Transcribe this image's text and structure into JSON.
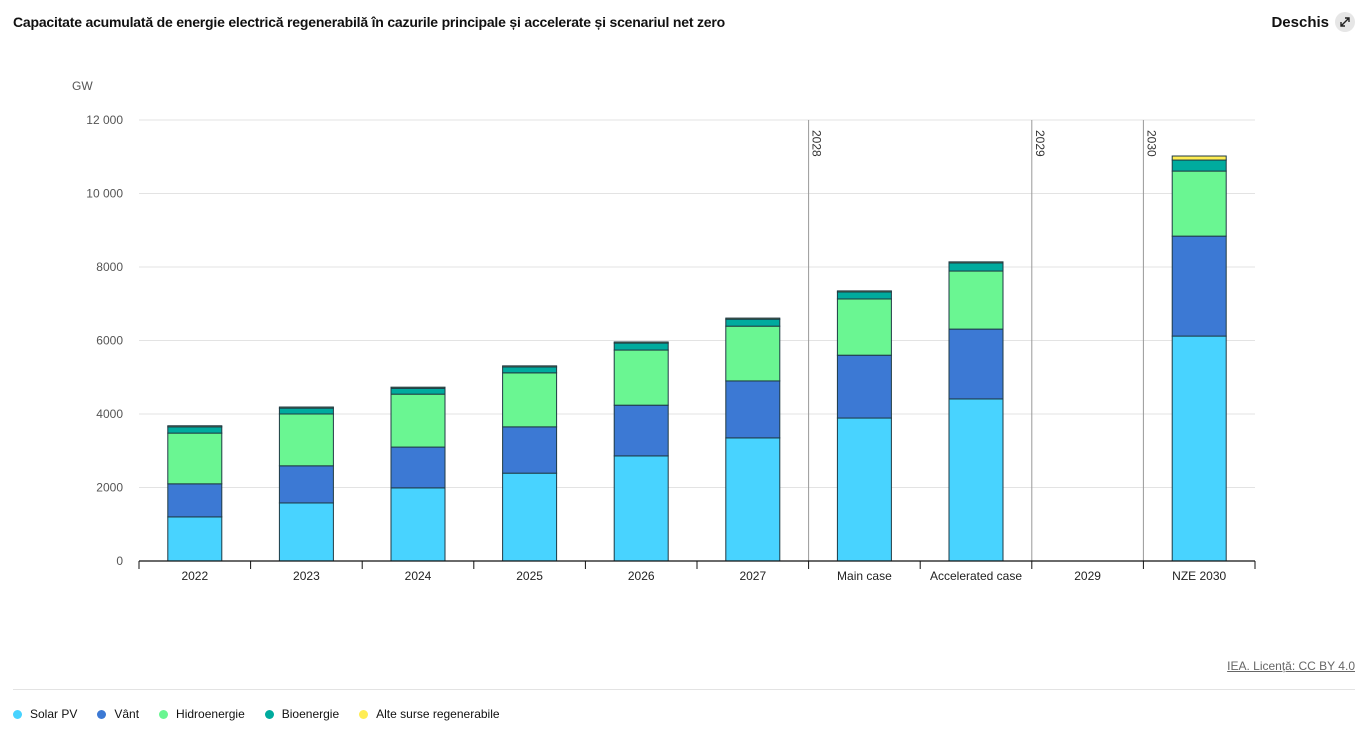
{
  "header": {
    "title": "Capacitate acumulată de energie electrică regenerabilă în cazurile principale și accelerate și scenariul net zero",
    "open_label": "Deschis",
    "open_icon": "expand-icon"
  },
  "footer": {
    "license": "IEA. Licență: CC BY 4.0"
  },
  "chart_data": {
    "type": "bar",
    "stacked": true,
    "title": "Capacitate acumulată de energie electrică regenerabilă în cazurile principale și accelerate și scenariul net zero",
    "xlabel": "",
    "ylabel": "GW",
    "ylim": [
      0,
      12000
    ],
    "yticks": [
      0,
      2000,
      4000,
      6000,
      8000,
      10000,
      12000
    ],
    "ytick_labels": [
      "0",
      "2000",
      "4000",
      "6000",
      "8000",
      "10 000",
      "12 000"
    ],
    "grid": true,
    "legend_position": "bottom-left",
    "categories": [
      "2022",
      "2023",
      "2024",
      "2025",
      "2026",
      "2027",
      "Main case",
      "Accelerated case",
      "2029",
      "NZE 2030"
    ],
    "group_markers": [
      {
        "label": "2028",
        "before_category": "Main case"
      },
      {
        "label": "2029",
        "before_category": "2029"
      },
      {
        "label": "2030",
        "before_category": "NZE 2030"
      }
    ],
    "series": [
      {
        "name": "Solar PV",
        "color": "#48d3ff",
        "values": [
          1200,
          1580,
          1990,
          2390,
          2860,
          3350,
          3890,
          4410,
          null,
          6120
        ]
      },
      {
        "name": "Vânt",
        "color": "#3c79d4",
        "values": [
          900,
          1010,
          1110,
          1260,
          1380,
          1550,
          1710,
          1900,
          null,
          2720
        ]
      },
      {
        "name": "Hidroenergie",
        "color": "#6af692",
        "values": [
          1380,
          1410,
          1440,
          1470,
          1500,
          1490,
          1530,
          1580,
          null,
          1770
        ]
      },
      {
        "name": "Bioenergie",
        "color": "#00ab9e",
        "values": [
          170,
          160,
          160,
          160,
          190,
          190,
          190,
          220,
          null,
          300
        ]
      },
      {
        "name": "Alte surse regenerabile",
        "color": "#ffed53",
        "values": [
          30,
          30,
          30,
          30,
          30,
          30,
          30,
          30,
          null,
          110
        ]
      }
    ]
  }
}
